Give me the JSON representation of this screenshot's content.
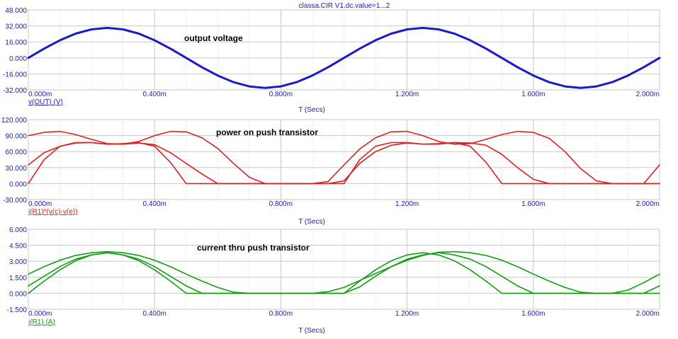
{
  "window": {
    "title": "classa.CIR V1.dc.value=1...2"
  },
  "colors": {
    "axis": "#2020c0",
    "grid": "#c8c8c8"
  },
  "chart_data": [
    {
      "type": "line",
      "annotation": "output voltage",
      "trace_label": "v(OUT) (V)",
      "xlabel": "T (Secs)",
      "xlim": [
        0,
        0.002
      ],
      "ylim": [
        -32,
        48
      ],
      "x_ticks": [
        0,
        0.0004,
        0.0008,
        0.0012,
        0.0016,
        0.002
      ],
      "x_tick_labels": [
        "0.000m",
        "0.400m",
        "0.800m",
        "1.200m",
        "1.600m",
        "2.000m"
      ],
      "y_ticks": [
        -32,
        -16,
        0,
        16,
        32,
        48
      ],
      "y_tick_labels": [
        "-32.000",
        "-16.000",
        "0.000",
        "16.000",
        "32.000",
        "48.000"
      ],
      "color": "#1a1acc",
      "line_width": 3,
      "series": [
        {
          "x": [
            0,
            5e-05,
            0.0001,
            0.00015,
            0.0002,
            0.00025,
            0.0003,
            0.00035,
            0.0004,
            0.00045,
            0.0005,
            0.00055,
            0.0006,
            0.00065,
            0.0007,
            0.00075,
            0.0008,
            0.00085,
            0.0009,
            0.00095,
            0.001,
            0.00105,
            0.0011,
            0.00115,
            0.0012,
            0.00125,
            0.0013,
            0.00135,
            0.0014,
            0.00145,
            0.0015,
            0.00155,
            0.0016,
            0.00165,
            0.0017,
            0.00175,
            0.0018,
            0.00185,
            0.0019,
            0.00195,
            0.002
          ],
          "y": [
            0,
            9.3,
            17.6,
            24.3,
            28.5,
            30,
            28.5,
            24.3,
            17.6,
            9.3,
            0,
            -9.3,
            -17.6,
            -24.3,
            -28.5,
            -30,
            -28.5,
            -24.3,
            -17.6,
            -9.3,
            0,
            9.3,
            17.6,
            24.3,
            28.5,
            30,
            28.5,
            24.3,
            17.6,
            9.3,
            0,
            -9.3,
            -17.6,
            -24.3,
            -28.5,
            -30,
            -28.5,
            -24.3,
            -17.6,
            -9.3,
            0
          ]
        }
      ]
    },
    {
      "type": "line",
      "annotation": "power on push transistor",
      "trace_label": "i(R1)*(v(c)-v(e))",
      "xlabel": "T (Secs)",
      "xlim": [
        0,
        0.002
      ],
      "ylim": [
        -30,
        120
      ],
      "x_ticks": [
        0,
        0.0004,
        0.0008,
        0.0012,
        0.0016,
        0.002
      ],
      "x_tick_labels": [
        "0.000m",
        "0.400m",
        "0.800m",
        "1.200m",
        "1.600m",
        "2.000m"
      ],
      "y_ticks": [
        -30,
        0,
        30,
        60,
        90,
        120
      ],
      "y_tick_labels": [
        "-30.000",
        "0.000",
        "30.000",
        "60.000",
        "90.000",
        "120.000"
      ],
      "color": "#e02020",
      "line_width": 1.6,
      "series": [
        {
          "x": [
            0,
            5e-05,
            0.0001,
            0.00015,
            0.0002,
            0.00025,
            0.0003,
            0.00035,
            0.0004,
            0.00045,
            0.0005,
            0.00055,
            0.0006,
            0.00065,
            0.0007,
            0.00075,
            0.0008,
            0.00085,
            0.0009,
            0.00095,
            0.001,
            0.00105,
            0.0011,
            0.00115,
            0.0012,
            0.00125,
            0.0013,
            0.00135,
            0.0014,
            0.00145,
            0.0015,
            0.00155,
            0.0016,
            0.00165,
            0.0017,
            0.00175,
            0.0018,
            0.00185,
            0.0019,
            0.00195,
            0.002
          ],
          "y": [
            90,
            96,
            98,
            92,
            83,
            75,
            74,
            79,
            90,
            98,
            97,
            86,
            66,
            38,
            12,
            0,
            0,
            0,
            0,
            4,
            35,
            65,
            86,
            97,
            98,
            90,
            79,
            74,
            75,
            83,
            92,
            98,
            96,
            85,
            60,
            28,
            5,
            0,
            0,
            0,
            0
          ]
        },
        {
          "x": [
            0,
            5e-05,
            0.0001,
            0.00015,
            0.0002,
            0.00025,
            0.0003,
            0.00035,
            0.0004,
            0.00045,
            0.0005,
            0.00055,
            0.0006,
            0.00065,
            0.0007,
            0.00075,
            0.0008,
            0.00085,
            0.0009,
            0.00095,
            0.001,
            0.00105,
            0.0011,
            0.00115,
            0.0012,
            0.00125,
            0.0013,
            0.00135,
            0.0014,
            0.00145,
            0.0015,
            0.00155,
            0.0016,
            0.00165,
            0.0017,
            0.00175,
            0.0018,
            0.00185,
            0.0019,
            0.00195,
            0.002
          ],
          "y": [
            35,
            58,
            70,
            76,
            77,
            74,
            74,
            76,
            73,
            58,
            38,
            18,
            0,
            0,
            0,
            0,
            0,
            0,
            0,
            0,
            5,
            38,
            60,
            72,
            76,
            74,
            74,
            77,
            76,
            72,
            55,
            30,
            8,
            0,
            0,
            0,
            0,
            0,
            0,
            0,
            35
          ]
        },
        {
          "x": [
            0,
            5e-05,
            0.0001,
            0.00015,
            0.0002,
            0.00025,
            0.0003,
            0.00035,
            0.0004,
            0.00045,
            0.0005,
            0.00055,
            0.0006,
            0.00065,
            0.0007,
            0.00075,
            0.0008,
            0.00085,
            0.0009,
            0.00095,
            0.001,
            0.00105,
            0.0011,
            0.00115,
            0.0012,
            0.00125,
            0.0013,
            0.00135,
            0.0014,
            0.00145,
            0.0015,
            0.00155,
            0.0016,
            0.00165,
            0.0017,
            0.00175,
            0.0018,
            0.00185,
            0.0019,
            0.00195,
            0.002
          ],
          "y": [
            0,
            45,
            70,
            77,
            77,
            74,
            75,
            77,
            70,
            40,
            0,
            0,
            0,
            0,
            0,
            0,
            0,
            0,
            0,
            0,
            0,
            45,
            70,
            77,
            77,
            74,
            75,
            77,
            70,
            40,
            0,
            0,
            0,
            0,
            0,
            0,
            0,
            0,
            0,
            0,
            0
          ]
        }
      ]
    },
    {
      "type": "line",
      "annotation": "current thru push transistor",
      "trace_label": "i(R1) (A)",
      "xlabel": "T (Secs)",
      "xlim": [
        0,
        0.002
      ],
      "ylim": [
        -1.5,
        6
      ],
      "x_ticks": [
        0,
        0.0004,
        0.0008,
        0.0012,
        0.0016,
        0.002
      ],
      "x_tick_labels": [
        "0.000m",
        "0.400m",
        "0.800m",
        "1.200m",
        "1.600m",
        "2.000m"
      ],
      "y_ticks": [
        -1.5,
        0,
        1.5,
        3,
        4.5,
        6
      ],
      "y_tick_labels": [
        "-1.500",
        "0.000",
        "1.500",
        "3.000",
        "4.500",
        "6.000"
      ],
      "color": "#10a010",
      "line_width": 1.6,
      "series": [
        {
          "x": [
            0,
            5e-05,
            0.0001,
            0.00015,
            0.0002,
            0.00025,
            0.0003,
            0.00035,
            0.0004,
            0.00045,
            0.0005,
            0.00055,
            0.0006,
            0.00065,
            0.0007,
            0.00075,
            0.0008,
            0.00085,
            0.0009,
            0.00095,
            0.001,
            0.00105,
            0.0011,
            0.00115,
            0.0012,
            0.00125,
            0.0013,
            0.00135,
            0.0014,
            0.00145,
            0.0015,
            0.00155,
            0.0016,
            0.00165,
            0.0017,
            0.00175,
            0.0018,
            0.00185,
            0.0019,
            0.00195,
            0.002
          ],
          "y": [
            1.8,
            2.5,
            3.1,
            3.55,
            3.8,
            3.9,
            3.8,
            3.55,
            3.1,
            2.5,
            1.8,
            1.15,
            0.55,
            0.1,
            0,
            0,
            0,
            0,
            0,
            0.15,
            0.55,
            1.2,
            1.85,
            2.5,
            3.1,
            3.55,
            3.85,
            3.9,
            3.8,
            3.55,
            3.1,
            2.5,
            1.8,
            1.15,
            0.55,
            0.1,
            0,
            0,
            0.3,
            1.0,
            1.8
          ]
        },
        {
          "x": [
            0,
            5e-05,
            0.0001,
            0.00015,
            0.0002,
            0.00025,
            0.0003,
            0.00035,
            0.0004,
            0.00045,
            0.0005,
            0.00055,
            0.0006,
            0.00065,
            0.0007,
            0.00075,
            0.0008,
            0.00085,
            0.0009,
            0.00095,
            0.001,
            0.00105,
            0.0011,
            0.00115,
            0.0012,
            0.00125,
            0.0013,
            0.00135,
            0.0014,
            0.00145,
            0.0015,
            0.00155,
            0.0016,
            0.00165,
            0.0017,
            0.00175,
            0.0018,
            0.00185,
            0.0019,
            0.00195,
            0.002
          ],
          "y": [
            0.7,
            1.6,
            2.5,
            3.2,
            3.6,
            3.8,
            3.6,
            3.2,
            2.5,
            1.6,
            0.7,
            0,
            0,
            0,
            0,
            0,
            0,
            0,
            0,
            0,
            0,
            0.6,
            1.6,
            2.5,
            3.2,
            3.6,
            3.8,
            3.6,
            3.2,
            2.5,
            1.6,
            0.7,
            0,
            0,
            0,
            0,
            0,
            0,
            0,
            0,
            0.7
          ]
        },
        {
          "x": [
            0,
            5e-05,
            0.0001,
            0.00015,
            0.0002,
            0.00025,
            0.0003,
            0.00035,
            0.0004,
            0.00045,
            0.0005,
            0.00055,
            0.0006,
            0.00065,
            0.0007,
            0.00075,
            0.0008,
            0.00085,
            0.0009,
            0.00095,
            0.001,
            0.00105,
            0.0011,
            0.00115,
            0.0012,
            0.00125,
            0.0013,
            0.00135,
            0.0014,
            0.00145,
            0.0015,
            0.00155,
            0.0016,
            0.00165,
            0.0017,
            0.00175,
            0.0018,
            0.00185,
            0.0019,
            0.00195,
            0.002
          ],
          "y": [
            0,
            1.15,
            2.2,
            3.05,
            3.6,
            3.8,
            3.6,
            3.05,
            2.2,
            1.15,
            0,
            0,
            0,
            0,
            0,
            0,
            0,
            0,
            0,
            0,
            0,
            1.15,
            2.2,
            3.05,
            3.6,
            3.8,
            3.6,
            3.05,
            2.2,
            1.15,
            0,
            0,
            0,
            0,
            0,
            0,
            0,
            0,
            0,
            0,
            0
          ]
        }
      ]
    }
  ]
}
